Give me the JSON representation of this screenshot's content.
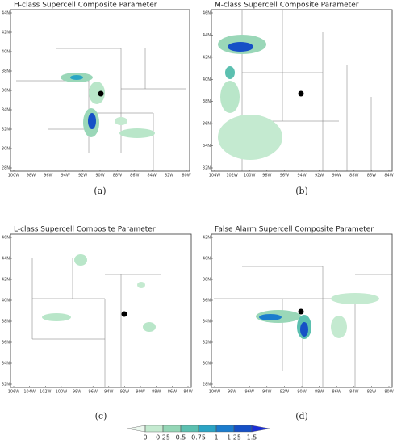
{
  "panels": [
    {
      "title": "H-class Supercell Composite Parameter",
      "caption": "(a)",
      "xticks": [
        "100W",
        "98W",
        "96W",
        "94W",
        "92W",
        "90W",
        "88W",
        "86W",
        "84W",
        "82W",
        "80W"
      ],
      "yticks": [
        "28N",
        "30N",
        "32N",
        "34N",
        "36N",
        "38N",
        "40N",
        "42N",
        "44N"
      ]
    },
    {
      "title": "M-class Supercell Composite Parameter",
      "caption": "(b)",
      "xticks": [
        "104W",
        "102W",
        "100W",
        "98W",
        "96W",
        "94W",
        "92W",
        "90W",
        "88W",
        "86W",
        "84W"
      ],
      "yticks": [
        "32N",
        "34N",
        "36N",
        "38N",
        "40N",
        "42N",
        "44N",
        "46N"
      ]
    },
    {
      "title": "L-class Supercell Composite Parameter",
      "caption": "(c)",
      "xticks": [
        "106W",
        "104W",
        "102W",
        "100W",
        "98W",
        "96W",
        "94W",
        "92W",
        "90W",
        "88W",
        "86W",
        "84W"
      ],
      "yticks": [
        "32N",
        "34N",
        "36N",
        "38N",
        "40N",
        "42N",
        "44N",
        "46N"
      ]
    },
    {
      "title": "False Alarm Supercell Composite Parameter",
      "caption": "(d)",
      "xticks": [
        "100W",
        "98W",
        "96W",
        "94W",
        "92W",
        "90W",
        "88W",
        "86W",
        "84W",
        "82W",
        "80W"
      ],
      "yticks": [
        "28N",
        "30N",
        "32N",
        "34N",
        "36N",
        "38N",
        "40N",
        "42N"
      ]
    }
  ],
  "colorbar": {
    "ticks": [
      0,
      0.25,
      0.5,
      0.75,
      1,
      1.25,
      1.5
    ],
    "colors": [
      "#ecf8ef",
      "#c4ead0",
      "#94d6b6",
      "#5cc0b0",
      "#2ba4c4",
      "#1c7ccd",
      "#1650c6",
      "#1b2ed8"
    ]
  }
}
